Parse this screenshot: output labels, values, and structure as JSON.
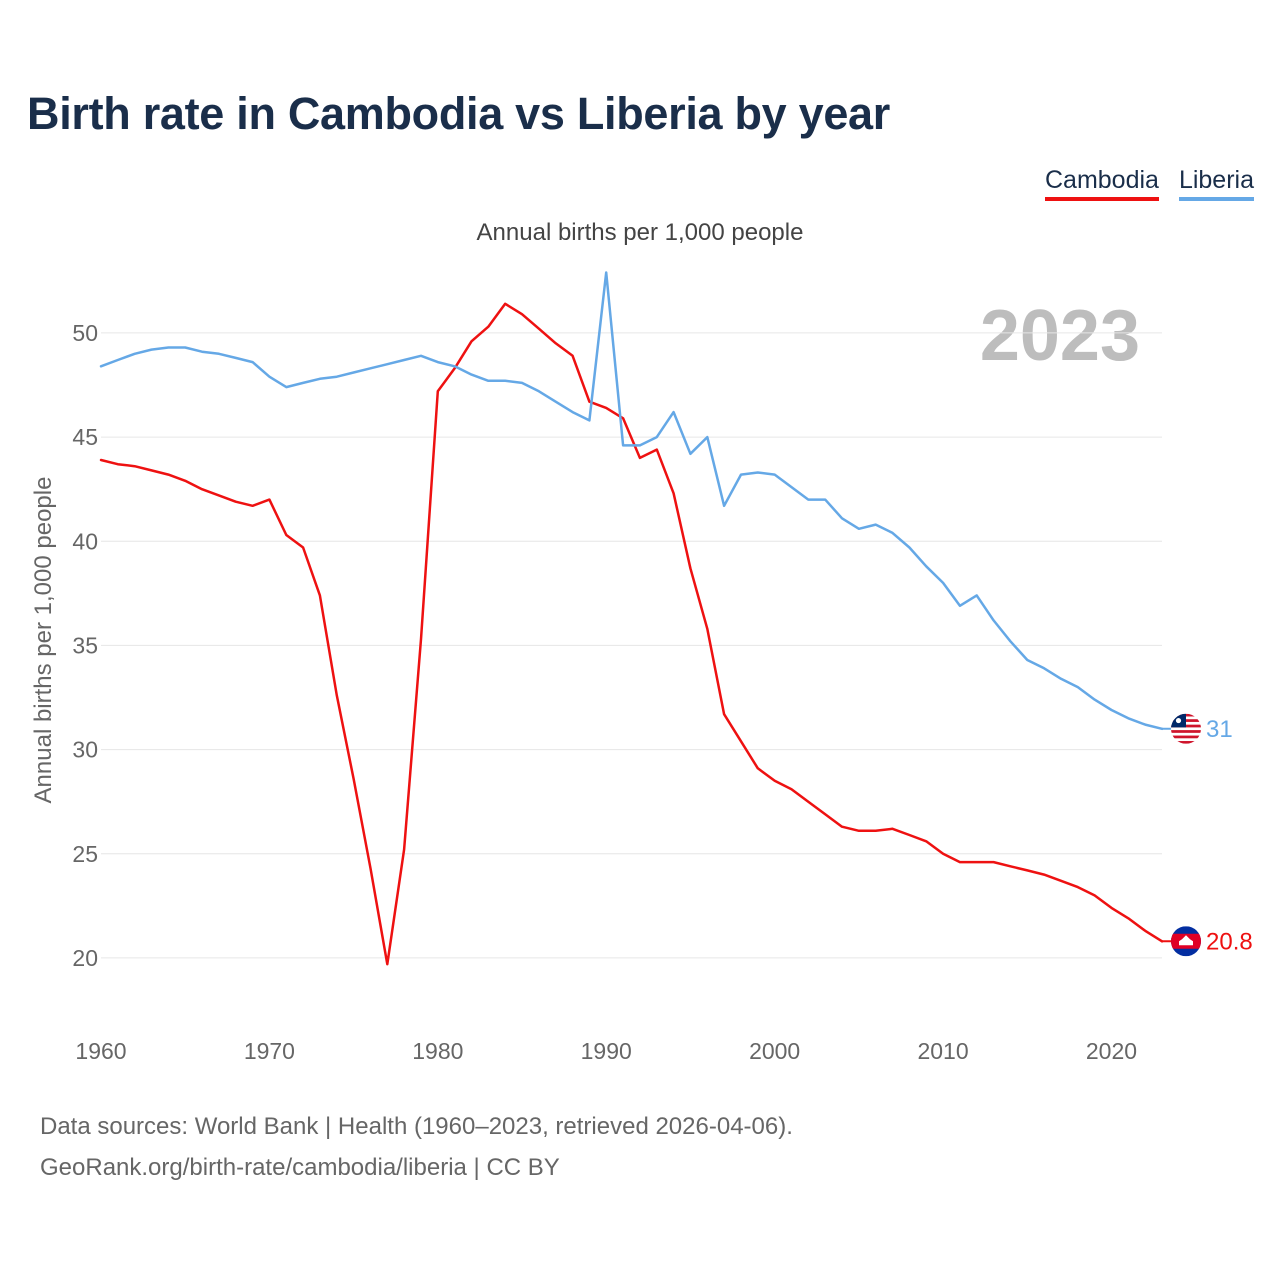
{
  "title": "Birth rate in Cambodia vs Liberia by year",
  "legend": [
    {
      "label": "Cambodia",
      "color": "#ee1111"
    },
    {
      "label": "Liberia",
      "color": "#65a8e6"
    }
  ],
  "footer": {
    "line1": "Data sources: World Bank | Health (1960–2023, retrieved 2026-04-06).",
    "line2": "GeoRank.org/birth-rate/cambodia/liberia | CC BY"
  },
  "chart_data": {
    "type": "line",
    "subtitle": "Annual births per 1,000 people",
    "ylabel": "Annual births per 1,000 people",
    "xlabel": "",
    "year_label": "2023",
    "xlim": [
      1960,
      2023
    ],
    "ylim": [
      17.5,
      53.5
    ],
    "x_ticks": [
      1960,
      1970,
      1980,
      1990,
      2000,
      2010,
      2020
    ],
    "y_ticks": [
      20,
      25,
      30,
      35,
      40,
      45,
      50
    ],
    "grid": true,
    "x": [
      1960,
      1961,
      1962,
      1963,
      1964,
      1965,
      1966,
      1967,
      1968,
      1969,
      1970,
      1971,
      1972,
      1973,
      1974,
      1975,
      1976,
      1977,
      1978,
      1979,
      1980,
      1981,
      1982,
      1983,
      1984,
      1985,
      1986,
      1987,
      1988,
      1989,
      1990,
      1991,
      1992,
      1993,
      1994,
      1995,
      1996,
      1997,
      1998,
      1999,
      2000,
      2001,
      2002,
      2003,
      2004,
      2005,
      2006,
      2007,
      2008,
      2009,
      2010,
      2011,
      2012,
      2013,
      2014,
      2015,
      2016,
      2017,
      2018,
      2019,
      2020,
      2021,
      2022,
      2023
    ],
    "series": [
      {
        "name": "Cambodia",
        "color": "#ee1111",
        "end_label": "20.8",
        "values": [
          43.9,
          43.7,
          43.6,
          43.4,
          43.2,
          42.9,
          42.5,
          42.2,
          41.9,
          41.7,
          42.0,
          40.3,
          39.7,
          37.4,
          32.6,
          28.6,
          24.3,
          19.7,
          25.2,
          35.3,
          47.2,
          48.3,
          49.6,
          50.3,
          51.4,
          50.9,
          50.2,
          49.5,
          48.9,
          46.7,
          46.4,
          45.9,
          44.0,
          44.4,
          42.3,
          38.7,
          35.8,
          31.7,
          30.4,
          29.1,
          28.5,
          28.1,
          27.5,
          26.9,
          26.3,
          26.1,
          26.1,
          26.2,
          25.9,
          25.6,
          25.0,
          24.6,
          24.6,
          24.6,
          24.4,
          24.2,
          24.0,
          23.7,
          23.4,
          23.0,
          22.4,
          21.9,
          21.3,
          20.8
        ]
      },
      {
        "name": "Liberia",
        "color": "#65a8e6",
        "end_label": "31",
        "values": [
          48.4,
          48.7,
          49.0,
          49.2,
          49.3,
          49.3,
          49.1,
          49.0,
          48.8,
          48.6,
          47.9,
          47.4,
          47.6,
          47.8,
          47.9,
          48.1,
          48.3,
          48.5,
          48.7,
          48.9,
          48.6,
          48.4,
          48.0,
          47.7,
          47.7,
          47.6,
          47.2,
          46.7,
          46.2,
          45.8,
          52.9,
          44.6,
          44.6,
          45.0,
          46.2,
          44.2,
          45.0,
          41.7,
          43.2,
          43.3,
          43.2,
          42.6,
          42.0,
          42.0,
          41.1,
          40.6,
          40.8,
          40.4,
          39.7,
          38.8,
          38.0,
          36.9,
          37.4,
          36.2,
          35.2,
          34.3,
          33.9,
          33.4,
          33.0,
          32.4,
          31.9,
          31.5,
          31.2,
          31.0
        ]
      }
    ]
  }
}
